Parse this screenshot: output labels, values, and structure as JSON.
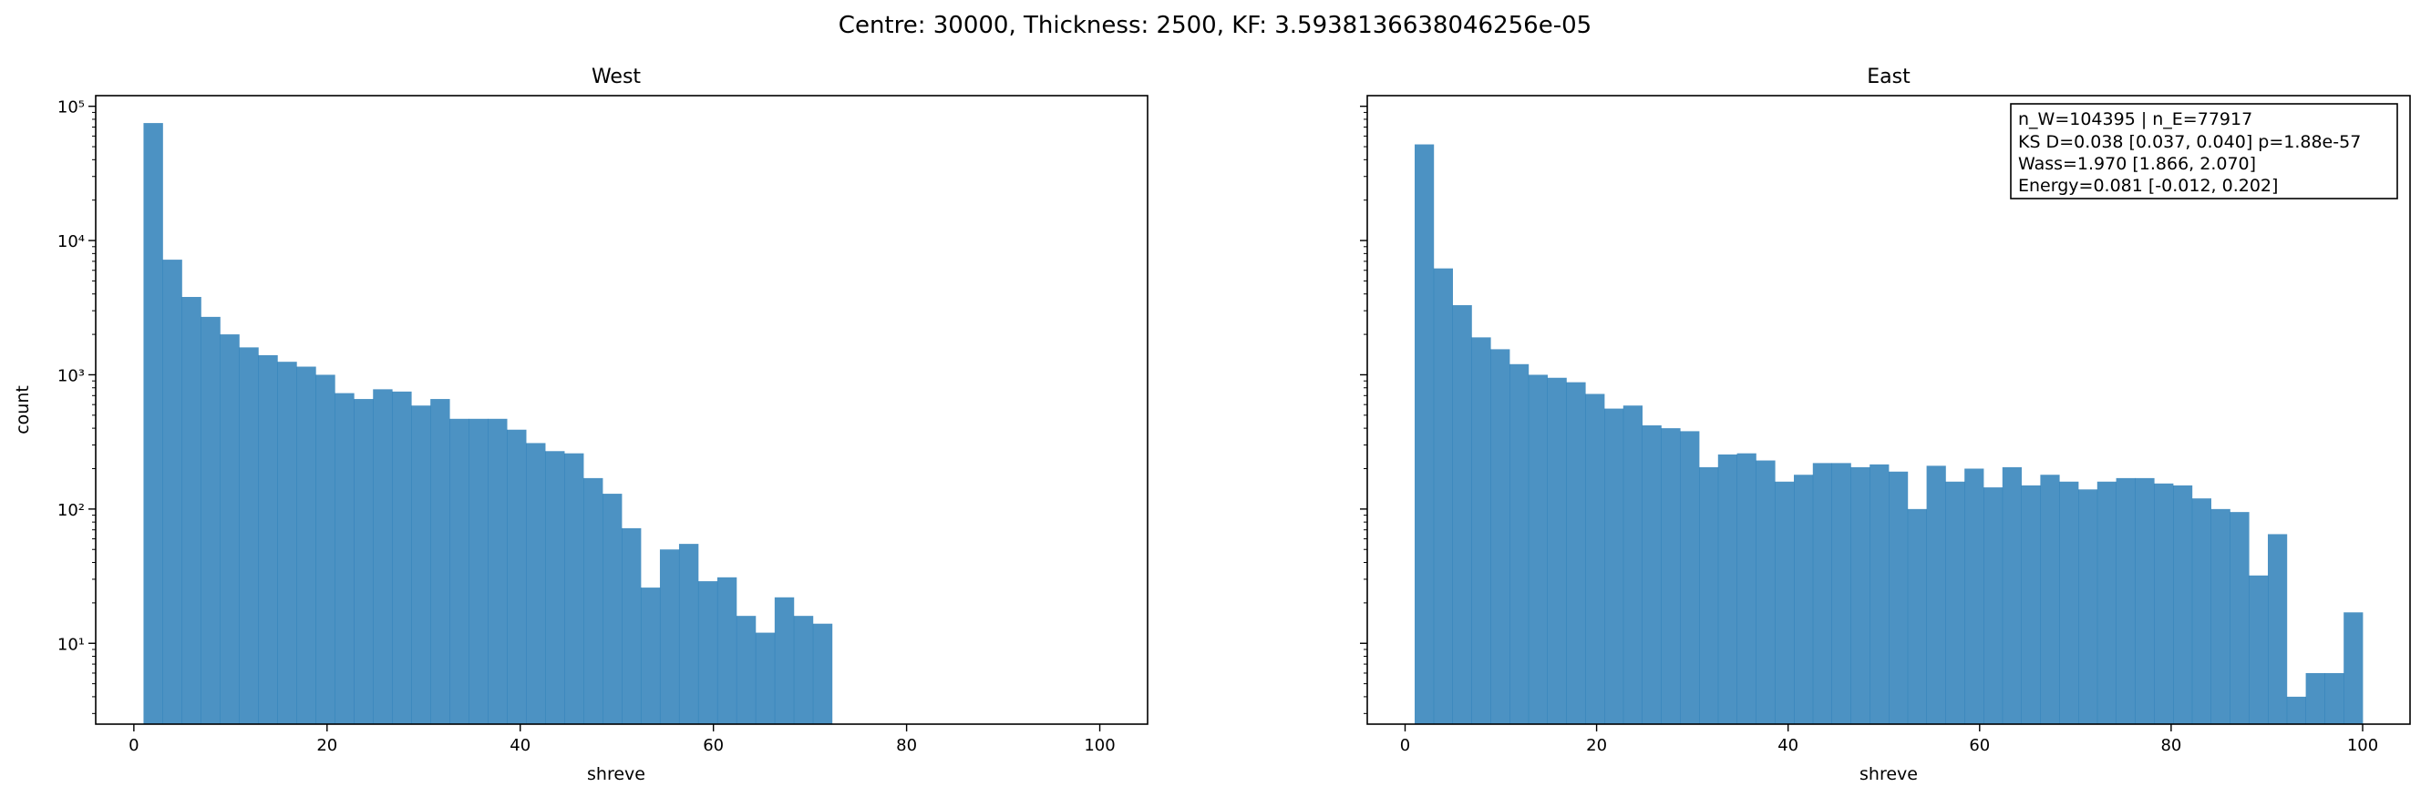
{
  "suptitle": "Centre: 30000, Thickness: 2500, KF: 3.5938136638046256e-05",
  "chart_data": [
    {
      "type": "bar",
      "title": "West",
      "xlabel": "shreve",
      "ylabel": "count",
      "yscale": "log",
      "xlim": [
        -3.95,
        104.95
      ],
      "ylim": [
        2.5,
        120000
      ],
      "xticks": [
        0,
        20,
        40,
        60,
        80,
        100
      ],
      "xtick_labels": [
        "0",
        "20",
        "40",
        "60",
        "80",
        "100"
      ],
      "yticks": [
        10,
        100,
        1000,
        10000,
        100000
      ],
      "ytick_labels": [
        "10¹",
        "10²",
        "10³",
        "10⁴",
        "10⁵"
      ],
      "bin_start": 1,
      "bin_width": 1.98,
      "color": "#1f77b4",
      "alpha": 0.8,
      "values": [
        75000,
        7200,
        3800,
        2700,
        2000,
        1600,
        1400,
        1250,
        1150,
        1000,
        730,
        660,
        780,
        750,
        590,
        660,
        470,
        470,
        470,
        390,
        310,
        270,
        260,
        170,
        130,
        72,
        26,
        50,
        55,
        29,
        31,
        16,
        12,
        22,
        16,
        14,
        0,
        0,
        0,
        0,
        0,
        0,
        0,
        0,
        0,
        0,
        0,
        0,
        0,
        0
      ]
    },
    {
      "type": "bar",
      "title": "East",
      "xlabel": "shreve",
      "yscale": "log",
      "xlim": [
        -3.95,
        104.95
      ],
      "ylim": [
        2.5,
        120000
      ],
      "xticks": [
        0,
        20,
        40,
        60,
        80,
        100
      ],
      "xtick_labels": [
        "0",
        "20",
        "40",
        "60",
        "80",
        "100"
      ],
      "yticks": [
        10,
        100,
        1000,
        10000,
        100000
      ],
      "bin_start": 1,
      "bin_width": 1.98,
      "color": "#1f77b4",
      "alpha": 0.8,
      "values": [
        52000,
        6200,
        3300,
        1900,
        1550,
        1200,
        1000,
        950,
        880,
        720,
        560,
        590,
        420,
        400,
        380,
        205,
        255,
        260,
        230,
        160,
        180,
        220,
        220,
        205,
        215,
        190,
        100,
        210,
        160,
        200,
        145,
        205,
        150,
        180,
        160,
        140,
        160,
        170,
        170,
        155,
        150,
        120,
        100,
        95,
        32,
        65,
        4,
        6,
        6,
        17
      ],
      "annotation": [
        "n_W=104395 | n_E=77917",
        "KS D=0.038 [0.037, 0.040]  p=1.88e-57",
        "Wass=1.970 [1.866, 2.070]",
        "Energy=0.081 [-0.012, 0.202]"
      ]
    }
  ]
}
